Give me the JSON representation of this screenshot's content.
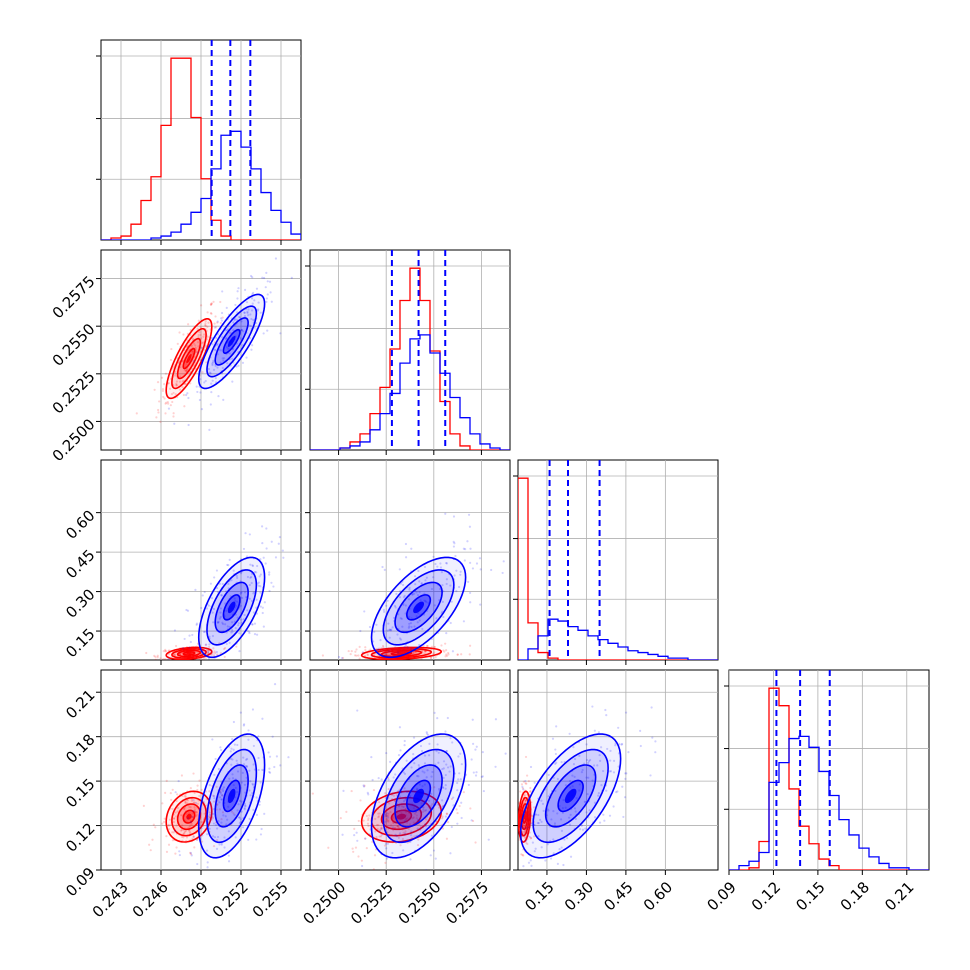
{
  "chart_data": {
    "type": "scatter",
    "figure": "corner",
    "grid": true,
    "colors": {
      "series_a": "#ff0000",
      "series_b": "#0000ff"
    },
    "series": [
      {
        "color": "#ff0000"
      },
      {
        "color": "#0000ff"
      }
    ],
    "params": [
      {
        "range": [
          0.2415,
          0.2565
        ],
        "ticks": [
          "0.243",
          "0.246",
          "0.249",
          "0.252",
          "0.255"
        ],
        "tick_values": [
          0.243,
          0.246,
          0.249,
          0.252,
          0.255
        ]
      },
      {
        "range": [
          0.2485,
          0.259
        ],
        "ticks": [
          "0.2500",
          "0.2525",
          "0.2550",
          "0.2575"
        ],
        "tick_values": [
          0.25,
          0.2525,
          0.255,
          0.2575
        ]
      },
      {
        "range": [
          0.04,
          0.8
        ],
        "ticks": [
          "0.15",
          "0.30",
          "0.45",
          "0.60"
        ],
        "tick_values": [
          0.15,
          0.3,
          0.45,
          0.6
        ]
      },
      {
        "range": [
          0.09,
          0.225
        ],
        "ticks": [
          "0.09",
          "0.12",
          "0.15",
          "0.18",
          "0.21"
        ],
        "tick_values": [
          0.09,
          0.12,
          0.15,
          0.18,
          0.21
        ]
      }
    ],
    "quantile_lines": [
      [
        0.2498,
        0.2512,
        0.2527
      ],
      [
        0.2528,
        0.2542,
        0.2556
      ],
      [
        0.16,
        0.23,
        0.35
      ],
      [
        0.122,
        0.138,
        0.158
      ]
    ],
    "histograms": [
      {
        "bins": [
          0.2415,
          0.2575
        ],
        "red": [
          0,
          1,
          2,
          8,
          20,
          32,
          58,
          92,
          92,
          62,
          31,
          10,
          2,
          0,
          0,
          0,
          0,
          0,
          0,
          0
        ],
        "blue": [
          0,
          0,
          0,
          0,
          0,
          1,
          2,
          4,
          8,
          14,
          21,
          36,
          53,
          55,
          47,
          36,
          24,
          15,
          9,
          3
        ]
      },
      {
        "bins": [
          0.2485,
          0.2591
        ],
        "red": [
          0,
          0,
          0,
          1,
          4,
          8,
          18,
          31,
          50,
          74,
          90,
          74,
          49,
          24,
          8,
          2,
          0,
          0,
          0,
          0
        ],
        "blue": [
          0,
          0,
          0,
          1,
          2,
          4,
          10,
          18,
          28,
          43,
          55,
          57,
          48,
          38,
          26,
          16,
          8,
          3,
          1,
          0
        ]
      },
      {
        "bins": [
          0.04,
          0.8
        ],
        "red": [
          98,
          20,
          4,
          1,
          0,
          0,
          0,
          0,
          0,
          0,
          0,
          0,
          0,
          0,
          0,
          0,
          0,
          0,
          0,
          0
        ],
        "blue": [
          0,
          6,
          13,
          22,
          21,
          18,
          16,
          13,
          11,
          9,
          7,
          5,
          4,
          3,
          2,
          1,
          1,
          0,
          0,
          0
        ]
      },
      {
        "bins": [
          0.09,
          0.225
        ],
        "red": [
          0,
          0,
          1,
          13,
          83,
          75,
          37,
          20,
          12,
          5,
          2,
          0,
          0,
          0,
          0,
          0,
          0,
          0,
          0,
          0
        ],
        "blue": [
          0,
          2,
          4,
          8,
          40,
          49,
          60,
          61,
          56,
          45,
          34,
          23,
          16,
          10,
          6,
          3,
          1,
          1,
          0,
          0
        ]
      }
    ],
    "densities": {
      "red": {
        "mean": [
          0.2481,
          0.2533,
          0.065,
          0.126
        ],
        "sd": [
          0.0009,
          0.0011,
          0.012,
          0.009
        ],
        "corr": [
          [
            1,
            0.8,
            0.3,
            0.2
          ],
          [
            0.8,
            1,
            0.3,
            0.2
          ],
          [
            0.3,
            0.3,
            1,
            0.2
          ],
          [
            0.2,
            0.2,
            0.2,
            1
          ]
        ]
      },
      "blue": {
        "mean": [
          0.2513,
          0.2542,
          0.24,
          0.14
        ],
        "sd": [
          0.0013,
          0.0013,
          0.1,
          0.022
        ],
        "corr": [
          [
            1,
            0.8,
            0.6,
            0.5
          ],
          [
            0.8,
            1,
            0.6,
            0.5
          ],
          [
            0.6,
            0.6,
            1,
            0.6
          ],
          [
            0.5,
            0.5,
            0.6,
            1
          ]
        ]
      }
    }
  }
}
